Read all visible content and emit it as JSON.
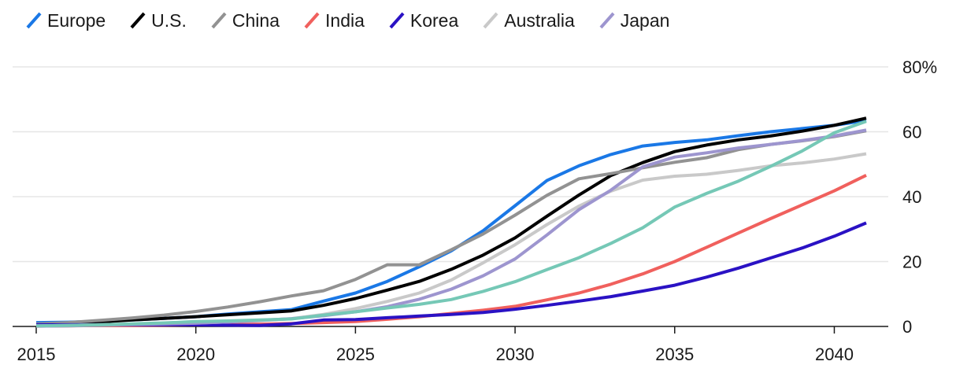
{
  "chart_data": {
    "type": "line",
    "title": "",
    "xlabel": "",
    "ylabel": "",
    "y_unit_suffix": "%",
    "xlim": [
      2015,
      2041
    ],
    "ylim": [
      0,
      80
    ],
    "x_ticks": [
      2015,
      2020,
      2025,
      2030,
      2035,
      2040
    ],
    "y_ticks": [
      0,
      20,
      40,
      60,
      80
    ],
    "y_tick_labels": [
      "0",
      "20",
      "40",
      "60",
      "80%"
    ],
    "x_tick_labels": [
      "2015",
      "2020",
      "2025",
      "2030",
      "2035",
      "2040"
    ],
    "grid": "horizontal",
    "legend_position": "top-left",
    "x": [
      2015,
      2016,
      2017,
      2018,
      2019,
      2020,
      2021,
      2022,
      2023,
      2024,
      2025,
      2026,
      2027,
      2028,
      2029,
      2030,
      2031,
      2032,
      2033,
      2034,
      2035,
      2036,
      2037,
      2038,
      2039,
      2040,
      2041
    ],
    "series": [
      {
        "name": "Europe",
        "color": "#1a78e6",
        "values": [
          1.2,
          1.3,
          1.6,
          2,
          2.5,
          3,
          3.8,
          4.5,
          5.2,
          7.8,
          10.3,
          13.9,
          18.4,
          23.3,
          29.5,
          37.2,
          45,
          49.5,
          53,
          55.6,
          56.7,
          57.5,
          58.8,
          60,
          61,
          62,
          63.5
        ]
      },
      {
        "name": "U.S.",
        "color": "#000000",
        "values": [
          0.5,
          0.9,
          1.4,
          2,
          2.5,
          3,
          3.6,
          4.2,
          4.8,
          6.5,
          8.6,
          11.2,
          13.9,
          17.6,
          22,
          27.3,
          34,
          40.5,
          46.5,
          50.5,
          53.9,
          55.9,
          57.5,
          58.7,
          60.2,
          62,
          64.2
        ]
      },
      {
        "name": "China",
        "color": "#929292",
        "values": [
          0.8,
          1.2,
          1.9,
          2.6,
          3.5,
          4.6,
          6,
          7.6,
          9.4,
          11,
          14.5,
          19,
          19,
          23.6,
          28.5,
          34.3,
          40.4,
          45.5,
          47.1,
          48.9,
          50.6,
          52,
          54.5,
          56.1,
          57.2,
          58.5,
          60.3
        ]
      },
      {
        "name": "India",
        "color": "#f0605d",
        "values": [
          0.1,
          0.2,
          0.3,
          0.3,
          0.4,
          0.5,
          0.6,
          0.7,
          0.9,
          1.2,
          1.5,
          2.2,
          3,
          4,
          5,
          6.2,
          8.2,
          10.3,
          13,
          16.2,
          20,
          24.4,
          28.8,
          33.2,
          37.5,
          41.8,
          46.6
        ]
      },
      {
        "name": "Korea",
        "color": "#2a12c4",
        "values": [
          0.5,
          0.5,
          0.5,
          0.5,
          0.5,
          0.5,
          0.4,
          0.3,
          0.8,
          2,
          2.1,
          2.7,
          3.2,
          3.7,
          4.3,
          5.3,
          6.5,
          7.8,
          9.2,
          10.9,
          12.7,
          15.2,
          18,
          21.1,
          24.2,
          27.8,
          31.9
        ]
      },
      {
        "name": "Australia",
        "color": "#c9c9c9",
        "values": [
          0.2,
          0.3,
          0.5,
          0.7,
          0.9,
          1.1,
          1.4,
          1.8,
          2.4,
          3.7,
          5.5,
          7.7,
          10.3,
          14.3,
          19.6,
          25.2,
          31.4,
          37.1,
          41.7,
          45.1,
          46.3,
          46.9,
          48.1,
          49.5,
          50.4,
          51.6,
          53.2
        ]
      },
      {
        "name": "Japan",
        "color": "#9d95cf",
        "values": [
          0.1,
          0.2,
          0.4,
          0.6,
          0.8,
          1,
          1.4,
          1.9,
          2.4,
          3.3,
          4.5,
          6.1,
          8.4,
          11.5,
          15.6,
          20.8,
          28.2,
          36,
          42,
          49.2,
          52.2,
          53.5,
          55,
          56.1,
          57.3,
          58.7,
          60.5
        ]
      },
      {
        "name": "",
        "color": "#75c8b6",
        "values": [
          0.2,
          0.3,
          0.5,
          0.8,
          1.1,
          1.5,
          1.7,
          2,
          2.3,
          3.5,
          4.5,
          5.7,
          6.8,
          8.3,
          10.8,
          13.8,
          17.5,
          21.2,
          25.6,
          30.4,
          36.8,
          41,
          44.8,
          49.3,
          54.1,
          59.7,
          63.2
        ]
      }
    ]
  }
}
